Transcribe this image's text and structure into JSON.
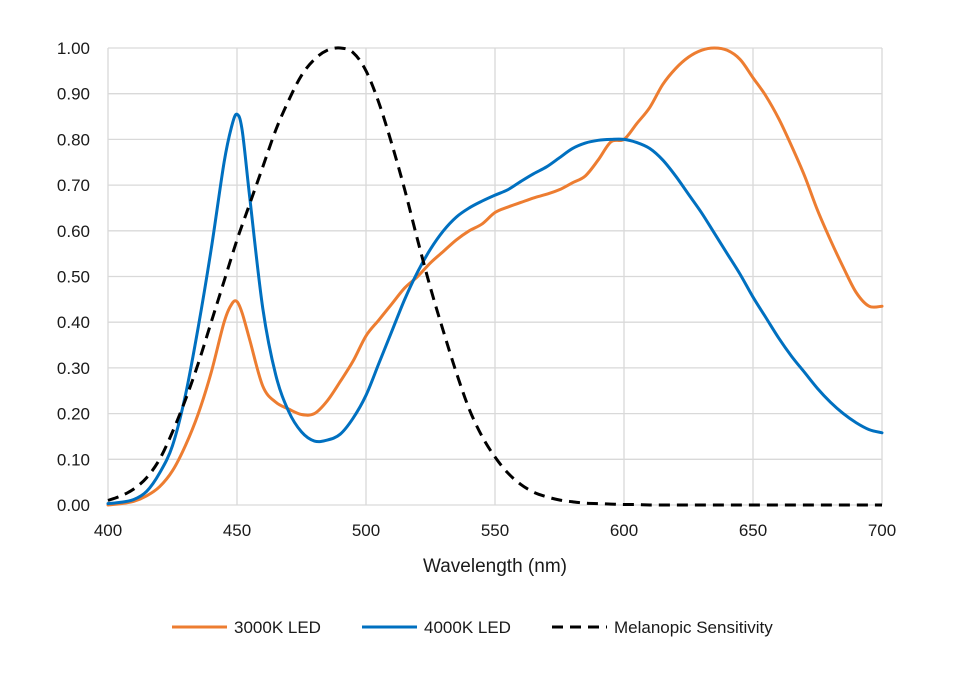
{
  "chart_data": {
    "type": "line",
    "title": "",
    "xlabel": "Wavelength (nm)",
    "ylabel": "",
    "xlim": [
      400,
      700
    ],
    "ylim": [
      0,
      1
    ],
    "x_ticks": [
      "400",
      "450",
      "500",
      "550",
      "600",
      "650",
      "700"
    ],
    "y_ticks": [
      "0.00",
      "0.10",
      "0.20",
      "0.30",
      "0.40",
      "0.50",
      "0.60",
      "0.70",
      "0.80",
      "0.90",
      "1.00"
    ],
    "grid": true,
    "legend_position": "bottom",
    "series": [
      {
        "name": "3000K LED",
        "color": "#ED7D31",
        "style": "solid",
        "x": [
          400,
          405,
          410,
          415,
          420,
          425,
          430,
          435,
          440,
          445,
          448,
          450,
          452,
          455,
          460,
          465,
          470,
          475,
          480,
          485,
          490,
          495,
          500,
          505,
          510,
          515,
          520,
          525,
          530,
          535,
          540,
          545,
          550,
          555,
          560,
          565,
          570,
          575,
          580,
          585,
          590,
          595,
          600,
          605,
          610,
          615,
          620,
          625,
          630,
          635,
          640,
          645,
          650,
          655,
          660,
          665,
          670,
          675,
          680,
          685,
          690,
          695,
          700
        ],
        "y": [
          0.0,
          0.003,
          0.008,
          0.02,
          0.04,
          0.075,
          0.13,
          0.2,
          0.29,
          0.4,
          0.44,
          0.445,
          0.42,
          0.36,
          0.26,
          0.225,
          0.21,
          0.198,
          0.2,
          0.228,
          0.27,
          0.315,
          0.37,
          0.405,
          0.44,
          0.475,
          0.5,
          0.53,
          0.555,
          0.58,
          0.6,
          0.615,
          0.64,
          0.652,
          0.662,
          0.672,
          0.68,
          0.69,
          0.705,
          0.72,
          0.755,
          0.795,
          0.8,
          0.835,
          0.87,
          0.92,
          0.955,
          0.98,
          0.995,
          1.0,
          0.995,
          0.975,
          0.935,
          0.895,
          0.845,
          0.785,
          0.72,
          0.645,
          0.58,
          0.52,
          0.465,
          0.435,
          0.435
        ]
      },
      {
        "name": "4000K LED",
        "color": "#0070C0",
        "style": "solid",
        "x": [
          400,
          405,
          410,
          415,
          420,
          425,
          430,
          435,
          440,
          445,
          448,
          450,
          452,
          455,
          460,
          465,
          470,
          475,
          480,
          485,
          490,
          495,
          500,
          505,
          510,
          515,
          520,
          525,
          530,
          535,
          540,
          545,
          550,
          555,
          560,
          565,
          570,
          575,
          580,
          585,
          590,
          595,
          600,
          605,
          610,
          615,
          620,
          625,
          630,
          635,
          640,
          645,
          650,
          655,
          660,
          665,
          670,
          675,
          680,
          685,
          690,
          695,
          700
        ],
        "y": [
          0.003,
          0.006,
          0.012,
          0.03,
          0.07,
          0.13,
          0.24,
          0.39,
          0.56,
          0.75,
          0.83,
          0.855,
          0.82,
          0.67,
          0.43,
          0.285,
          0.205,
          0.16,
          0.14,
          0.142,
          0.155,
          0.19,
          0.24,
          0.31,
          0.38,
          0.45,
          0.51,
          0.56,
          0.6,
          0.63,
          0.65,
          0.665,
          0.678,
          0.69,
          0.708,
          0.725,
          0.74,
          0.76,
          0.78,
          0.792,
          0.798,
          0.8,
          0.8,
          0.793,
          0.78,
          0.755,
          0.72,
          0.68,
          0.64,
          0.595,
          0.55,
          0.505,
          0.455,
          0.41,
          0.365,
          0.325,
          0.29,
          0.255,
          0.225,
          0.2,
          0.18,
          0.165,
          0.158
        ]
      },
      {
        "name": "Melanopic Sensitivity",
        "color": "#000000",
        "style": "dashed",
        "x": [
          400,
          405,
          410,
          415,
          420,
          425,
          430,
          435,
          440,
          445,
          450,
          455,
          460,
          465,
          470,
          475,
          480,
          485,
          490,
          495,
          500,
          505,
          510,
          515,
          520,
          525,
          530,
          535,
          540,
          545,
          550,
          555,
          560,
          565,
          570,
          575,
          580,
          585,
          590,
          595,
          600,
          605,
          610,
          620,
          630,
          640,
          650,
          660,
          670,
          680,
          690,
          700
        ],
        "y": [
          0.01,
          0.02,
          0.035,
          0.06,
          0.1,
          0.16,
          0.23,
          0.31,
          0.4,
          0.49,
          0.58,
          0.66,
          0.74,
          0.82,
          0.885,
          0.94,
          0.975,
          0.995,
          1.0,
          0.99,
          0.95,
          0.88,
          0.79,
          0.69,
          0.58,
          0.475,
          0.38,
          0.29,
          0.21,
          0.15,
          0.105,
          0.07,
          0.045,
          0.028,
          0.018,
          0.011,
          0.007,
          0.004,
          0.003,
          0.002,
          0.001,
          0.001,
          0.0,
          0.0,
          0.0,
          0.0,
          0.0,
          0.0,
          0.0,
          0.0,
          0.0,
          0.0
        ]
      }
    ]
  }
}
